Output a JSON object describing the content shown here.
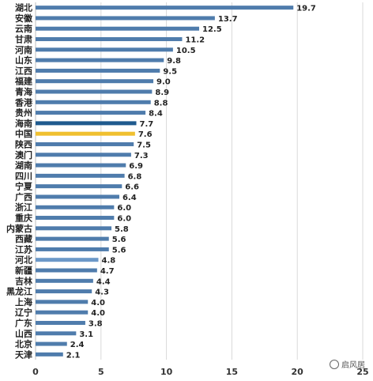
{
  "chart_data": {
    "type": "bar",
    "orientation": "horizontal",
    "categories": [
      "湖北",
      "安徽",
      "云南",
      "甘肃",
      "河南",
      "山东",
      "江西",
      "福建",
      "青海",
      "香港",
      "贵州",
      "海南",
      "中国",
      "陕西",
      "澳门",
      "湖南",
      "四川",
      "宁夏",
      "广西",
      "浙江",
      "重庆",
      "内蒙古",
      "西藏",
      "江苏",
      "河北",
      "新疆",
      "吉林",
      "黑龙江",
      "上海",
      "辽宁",
      "广东",
      "山西",
      "北京",
      "天津"
    ],
    "values": [
      19.7,
      13.7,
      12.5,
      11.2,
      10.5,
      9.8,
      9.5,
      9.0,
      8.9,
      8.8,
      8.4,
      7.7,
      7.6,
      7.5,
      7.3,
      6.9,
      6.8,
      6.6,
      6.4,
      6.0,
      6.0,
      5.8,
      5.6,
      5.6,
      4.8,
      4.7,
      4.4,
      4.3,
      4.0,
      4.0,
      3.8,
      3.1,
      2.4,
      2.1
    ],
    "value_labels": [
      "19.7",
      "13.7",
      "12.5",
      "11.2",
      "10.5",
      "9.8",
      "9.5",
      "9.0",
      "8.9",
      "8.8",
      "8.4",
      "7.7",
      "7.6",
      "7.5",
      "7.3",
      "6.9",
      "6.8",
      "6.6",
      "6.4",
      "6.0",
      "6.0",
      "5.8",
      "5.6",
      "5.6",
      "4.8",
      "4.7",
      "4.4",
      "4.3",
      "4.0",
      "4.0",
      "3.8",
      "3.1",
      "2.4",
      "2.1"
    ],
    "xlim": [
      0,
      25
    ],
    "xticks": [
      "0",
      "5",
      "10",
      "15",
      "20",
      "25"
    ],
    "grid": "vertical",
    "title": "",
    "xlabel": "",
    "ylabel": "",
    "colors": {
      "default": "#4f7cac",
      "highlight_dark": "#1f5a8e",
      "highlight_gold": "#f0c030",
      "light": "#6b98c8"
    },
    "bar_color_keys": [
      "default",
      "default",
      "default",
      "default",
      "default",
      "default",
      "default",
      "default",
      "default",
      "default",
      "default",
      "highlight_dark",
      "highlight_gold",
      "default",
      "default",
      "default",
      "default",
      "default",
      "default",
      "default",
      "default",
      "default",
      "default",
      "default",
      "light",
      "default",
      "default",
      "default",
      "default",
      "default",
      "default",
      "default",
      "default",
      "default"
    ]
  },
  "watermark": {
    "text": "启风居",
    "icon": "wechat-icon"
  }
}
